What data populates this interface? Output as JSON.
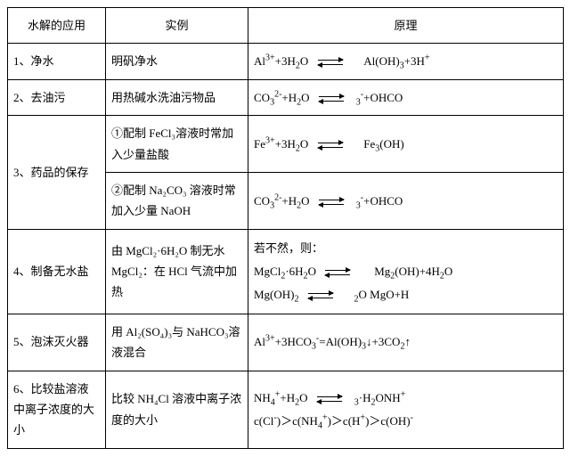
{
  "table": {
    "headers": [
      "水解的应用",
      "实例",
      "原理"
    ],
    "rows": [
      {
        "app": "1、净水",
        "example": "明矾净水",
        "principle": "Al³⁺+3H₂O ⇌ Al(OH)₃+3H⁺"
      },
      {
        "app": "2、去油污",
        "example": "用热碱水洗油污物品",
        "principle": "CO₃²⁻+H₂O ⇌ ₃⁻+OHCO"
      },
      {
        "app": "3、药品的保存",
        "example1": "①配制 FeCl₃溶液时常加入少量盐酸",
        "principle1": "Fe³⁺+3H₂O ⇌ Fe₃(OH)",
        "example2": "②配制 Na₂CO₃ 溶液时常加入少量 NaOH",
        "principle2": "CO₃²⁻+H₂O ⇌ ₃⁻+OHCO"
      },
      {
        "app": "4、制备无水盐",
        "example": "由 MgCl₂·6H₂O 制无水 MgCl₂：在 HCl 气流中加热",
        "principle_l1": "若不然，则：",
        "principle_l2": "MgCl₂·6H₂O ⇌ Mg₂(OH)+4H₂O",
        "principle_l3": "Mg(OH)₂ ⇌ ₂O MgO+H"
      },
      {
        "app": "5、泡沫灭火器",
        "example": "用 Al₂(SO₄)₃与 NaHCO₃溶液混合",
        "principle": "Al³⁺+3HCO₃⁻=Al(OH)₃↓+3CO₂↑"
      },
      {
        "app": "6、比较盐溶液中离子浓度的大小",
        "example": "比较 NH₄Cl 溶液中离子浓度的大小",
        "principle_l1": "NH₄⁺+H₂O ⇌ ₃·H₂ONH⁺",
        "principle_l2": "c(Cl⁻)＞c(NH₄⁺)＞c(H⁺)＞c(OH)⁻"
      }
    ]
  }
}
